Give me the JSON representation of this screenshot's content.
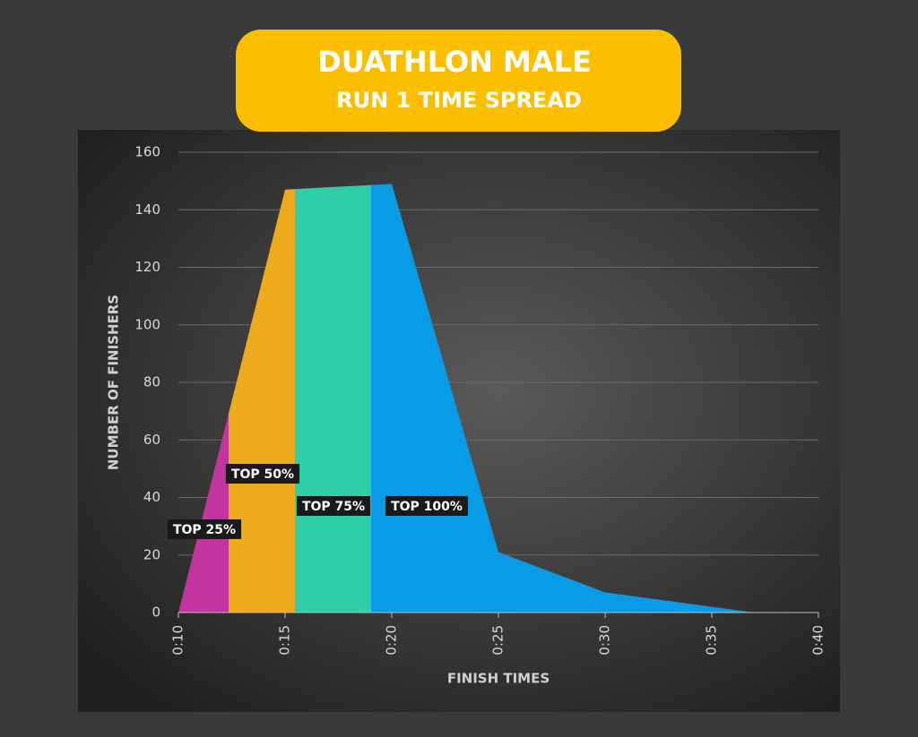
{
  "chart_data": {
    "type": "area",
    "title": "DUATHLON MALE",
    "subtitle": "RUN 1 TIME SPREAD",
    "x_label": "FINISH TIMES",
    "y_label": "NUMBER OF FINISHERS",
    "x": [
      10,
      15,
      20,
      25,
      30,
      35,
      37
    ],
    "values": [
      0,
      147,
      149,
      21,
      7,
      2,
      0
    ],
    "regions": [
      {
        "label": "TOP 25%",
        "color": "#c2359e",
        "xlim": [
          10,
          12.35
        ]
      },
      {
        "label": "TOP 50%",
        "color": "#edaa1c",
        "xlim": [
          12.35,
          15.46
        ]
      },
      {
        "label": "TOP 75%",
        "color": "#2ecfa8",
        "xlim": [
          15.46,
          19.03
        ]
      },
      {
        "label": "TOP 100%",
        "color": "#089be6",
        "xlim": [
          19.03,
          40
        ]
      }
    ],
    "xlim": [
      10,
      40
    ],
    "xticks": [
      {
        "value": 10,
        "label": "0:10"
      },
      {
        "value": 15,
        "label": "0:15"
      },
      {
        "value": 20,
        "label": "0:20"
      },
      {
        "value": 25,
        "label": "0:25"
      },
      {
        "value": 30,
        "label": "0:30"
      },
      {
        "value": 35,
        "label": "0:35"
      },
      {
        "value": 40,
        "label": "0:40"
      }
    ],
    "ylim": [
      0,
      160
    ],
    "yticks": [
      0,
      20,
      40,
      60,
      80,
      100,
      120,
      140,
      160
    ],
    "grid": true
  }
}
